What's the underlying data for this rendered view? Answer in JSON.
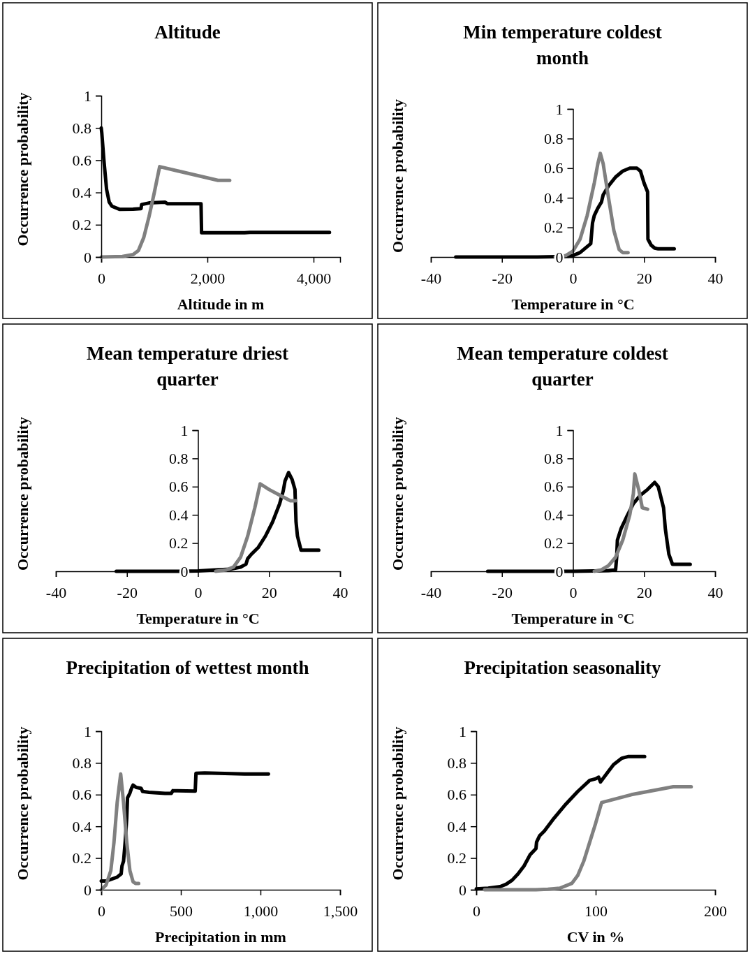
{
  "chart_data": [
    {
      "type": "line",
      "title": "Altitude",
      "xlabel": "Altitude in m",
      "ylabel": "Occurrence probability",
      "xlim": [
        0,
        4500
      ],
      "xticks": [
        0,
        {
          "value": 2000,
          "label": "2,000"
        },
        {
          "value": 4000,
          "label": "4,000"
        }
      ],
      "ylim": [
        0,
        1
      ],
      "yticks": [
        0,
        0.2,
        0.4,
        0.6,
        0.8,
        1
      ],
      "grid": false,
      "line_style": "solid",
      "marker": "none",
      "series": [
        {
          "color": "#000000",
          "x": [
            0,
            10,
            50,
            100,
            150,
            200,
            350,
            600,
            750,
            760,
            900,
            1200,
            1250,
            1400,
            1880,
            1890,
            2700,
            2800,
            4300
          ],
          "values": [
            0.8,
            0.77,
            0.6,
            0.42,
            0.34,
            0.315,
            0.295,
            0.297,
            0.3,
            0.325,
            0.335,
            0.34,
            0.33,
            0.33,
            0.33,
            0.15,
            0.15,
            0.153,
            0.153
          ]
        },
        {
          "color": "#808080",
          "x": [
            0,
            400,
            600,
            700,
            800,
            900,
            1000,
            1100,
            2200,
            2420
          ],
          "values": [
            0,
            0.003,
            0.015,
            0.04,
            0.12,
            0.25,
            0.4,
            0.56,
            0.475,
            0.475
          ]
        }
      ]
    },
    {
      "type": "line",
      "title": "Min temperature coldest month",
      "xlabel": "Temperature in °C",
      "ylabel": "Occurrence probability",
      "xlim": [
        -40,
        40
      ],
      "xticks": [
        -40,
        -20,
        0,
        20,
        40
      ],
      "ylim": [
        0,
        1
      ],
      "yticks": [
        0,
        0.2,
        0.4,
        0.6,
        0.8,
        1
      ],
      "grid": false,
      "line_style": "solid",
      "marker": "none",
      "series": [
        {
          "color": "#000000",
          "x": [
            -33,
            -10,
            -2,
            0,
            2,
            4,
            5,
            5.5,
            6,
            7,
            8,
            8.5,
            10,
            12,
            14,
            16,
            18,
            19,
            20,
            21,
            21.1,
            22,
            23,
            24,
            28.5
          ],
          "values": [
            0,
            0,
            0.003,
            0.01,
            0.03,
            0.07,
            0.09,
            0.23,
            0.28,
            0.33,
            0.37,
            0.42,
            0.48,
            0.54,
            0.58,
            0.6,
            0.6,
            0.58,
            0.5,
            0.44,
            0.12,
            0.08,
            0.06,
            0.055,
            0.055
          ]
        },
        {
          "color": "#808080",
          "x": [
            -5,
            -2,
            0,
            2,
            4,
            6,
            7,
            7.7,
            8.5,
            10,
            11.5,
            13,
            14,
            15.5
          ],
          "values": [
            0,
            0.01,
            0.04,
            0.12,
            0.28,
            0.5,
            0.63,
            0.7,
            0.63,
            0.4,
            0.18,
            0.05,
            0.03,
            0.03
          ]
        }
      ]
    },
    {
      "type": "line",
      "title": "Mean temperature driest quarter",
      "xlabel": "Temperature in °C",
      "ylabel": "Occurrence probability",
      "xlim": [
        -40,
        40
      ],
      "xticks": [
        -40,
        -20,
        0,
        20,
        40
      ],
      "ylim": [
        0,
        1
      ],
      "yticks": [
        0,
        0.2,
        0.4,
        0.6,
        0.8,
        1
      ],
      "grid": false,
      "line_style": "solid",
      "marker": "none",
      "series": [
        {
          "color": "#000000",
          "x": [
            -23,
            -5,
            0,
            5,
            9,
            12,
            13.5,
            14,
            15,
            17,
            19,
            21,
            23,
            24,
            24.5,
            25.5,
            26.5,
            27.3,
            27.6,
            28,
            29,
            34
          ],
          "values": [
            0,
            0,
            0.003,
            0.01,
            0.015,
            0.03,
            0.05,
            0.09,
            0.12,
            0.17,
            0.25,
            0.35,
            0.48,
            0.57,
            0.64,
            0.7,
            0.65,
            0.58,
            0.35,
            0.25,
            0.15,
            0.15
          ]
        },
        {
          "color": "#808080",
          "x": [
            5,
            8,
            10,
            12,
            14,
            16,
            17.5,
            20,
            23,
            26,
            27.5
          ],
          "values": [
            0,
            0.01,
            0.03,
            0.1,
            0.25,
            0.45,
            0.62,
            0.58,
            0.54,
            0.5,
            0.5
          ]
        }
      ]
    },
    {
      "type": "line",
      "title": "Mean temperature coldest quarter",
      "xlabel": "Temperature in °C",
      "ylabel": "Occurrence probability",
      "xlim": [
        -40,
        40
      ],
      "xticks": [
        -40,
        -20,
        0,
        20,
        40
      ],
      "ylim": [
        0,
        1
      ],
      "yticks": [
        0,
        0.2,
        0.4,
        0.6,
        0.8,
        1
      ],
      "grid": false,
      "line_style": "solid",
      "marker": "none",
      "series": [
        {
          "color": "#000000",
          "x": [
            -24,
            0,
            6,
            10,
            12,
            12.3,
            12.5,
            13.5,
            15,
            17,
            19,
            21,
            23,
            24,
            25.5,
            26,
            27,
            28,
            33
          ],
          "values": [
            0,
            0,
            0.003,
            0.005,
            0.01,
            0.1,
            0.22,
            0.3,
            0.38,
            0.48,
            0.54,
            0.58,
            0.63,
            0.6,
            0.45,
            0.3,
            0.12,
            0.05,
            0.05
          ]
        },
        {
          "color": "#808080",
          "x": [
            6,
            8,
            10,
            12,
            14,
            16,
            17,
            17.4,
            18.5,
            19.5,
            21
          ],
          "values": [
            0,
            0.01,
            0.04,
            0.1,
            0.22,
            0.4,
            0.55,
            0.69,
            0.58,
            0.45,
            0.44
          ]
        }
      ]
    },
    {
      "type": "line",
      "title": "Precipitation of wettest month",
      "xlabel": "Precipitation in mm",
      "ylabel": "Occurrence probability",
      "xlim": [
        0,
        1500
      ],
      "xticks": [
        0,
        500,
        {
          "value": 1000,
          "label": "1,000"
        },
        {
          "value": 1500,
          "label": "1,500"
        }
      ],
      "ylim": [
        0,
        1
      ],
      "yticks": [
        0,
        0.2,
        0.4,
        0.6,
        0.8,
        1
      ],
      "grid": false,
      "line_style": "solid",
      "marker": "none",
      "series": [
        {
          "color": "#000000",
          "x": [
            0,
            30,
            60,
            100,
            125,
            130,
            140,
            150,
            160,
            165,
            180,
            190,
            200,
            220,
            250,
            260,
            300,
            400,
            440,
            450,
            590,
            595,
            650,
            900,
            1050
          ],
          "values": [
            0.055,
            0.055,
            0.065,
            0.08,
            0.1,
            0.15,
            0.18,
            0.3,
            0.45,
            0.58,
            0.61,
            0.64,
            0.66,
            0.645,
            0.64,
            0.62,
            0.615,
            0.608,
            0.608,
            0.625,
            0.622,
            0.735,
            0.737,
            0.73,
            0.73
          ]
        },
        {
          "color": "#808080",
          "x": [
            0,
            30,
            60,
            80,
            100,
            122,
            140,
            160,
            180,
            200,
            215,
            235
          ],
          "values": [
            0,
            0.03,
            0.12,
            0.3,
            0.55,
            0.73,
            0.55,
            0.3,
            0.12,
            0.05,
            0.04,
            0.04
          ]
        }
      ]
    },
    {
      "type": "line",
      "title": "Precipitation seasonality",
      "xlabel": "CV in %",
      "ylabel": "Occurrence probability",
      "xlim": [
        0,
        200
      ],
      "xticks": [
        0,
        100,
        200
      ],
      "ylim": [
        0,
        1
      ],
      "yticks": [
        0,
        0.2,
        0.4,
        0.6,
        0.8,
        1
      ],
      "grid": false,
      "line_style": "solid",
      "marker": "none",
      "series": [
        {
          "color": "#000000",
          "x": [
            0,
            10,
            20,
            25,
            30,
            35,
            40,
            45,
            50,
            50.5,
            53,
            57,
            65,
            75,
            85,
            95,
            100,
            102.5,
            104,
            110,
            115,
            122,
            127,
            141
          ],
          "values": [
            0.005,
            0.01,
            0.02,
            0.035,
            0.06,
            0.1,
            0.15,
            0.22,
            0.26,
            0.3,
            0.34,
            0.37,
            0.45,
            0.54,
            0.62,
            0.69,
            0.7,
            0.71,
            0.68,
            0.74,
            0.79,
            0.83,
            0.84,
            0.84
          ]
        },
        {
          "color": "#808080",
          "x": [
            7,
            50,
            60,
            70,
            80,
            85,
            90,
            95,
            100,
            105,
            130,
            165,
            180
          ],
          "values": [
            0,
            0,
            0.003,
            0.01,
            0.04,
            0.09,
            0.18,
            0.3,
            0.42,
            0.55,
            0.6,
            0.65,
            0.65
          ]
        }
      ]
    }
  ]
}
